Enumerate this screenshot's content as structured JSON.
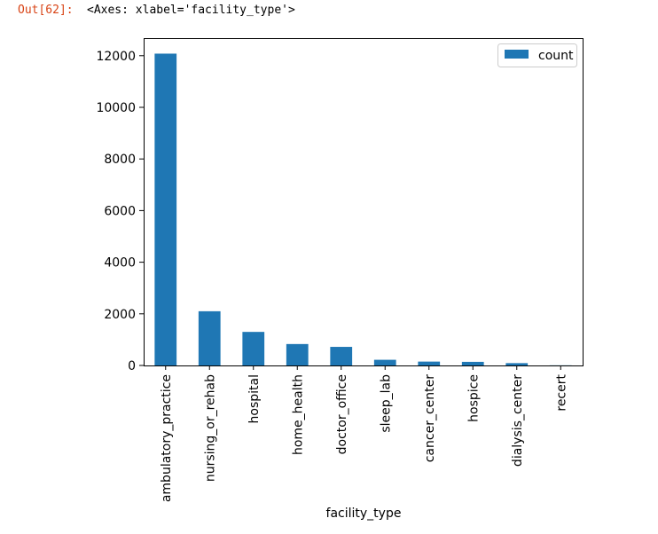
{
  "cell": {
    "prompt": "Out[62]:",
    "repr": "<Axes: xlabel='facility_type'>"
  },
  "colors": {
    "bar": "#1f77b4",
    "prompt": "#d84315"
  },
  "chart_data": {
    "type": "bar",
    "title": "",
    "xlabel": "facility_type",
    "ylabel": "",
    "categories": [
      "ambulatory_practice",
      "nursing_or_rehab",
      "hospital",
      "home_health",
      "doctor_office",
      "sleep_lab",
      "cancer_center",
      "hospice",
      "dialysis_center",
      "recert"
    ],
    "series": [
      {
        "name": "count",
        "values": [
          12080,
          2100,
          1300,
          830,
          720,
          220,
          150,
          140,
          90,
          5
        ]
      }
    ],
    "ylim": [
      0,
      12680
    ],
    "yticks": [
      0,
      2000,
      4000,
      6000,
      8000,
      10000,
      12000
    ],
    "grid": false,
    "legend": "top-right"
  }
}
